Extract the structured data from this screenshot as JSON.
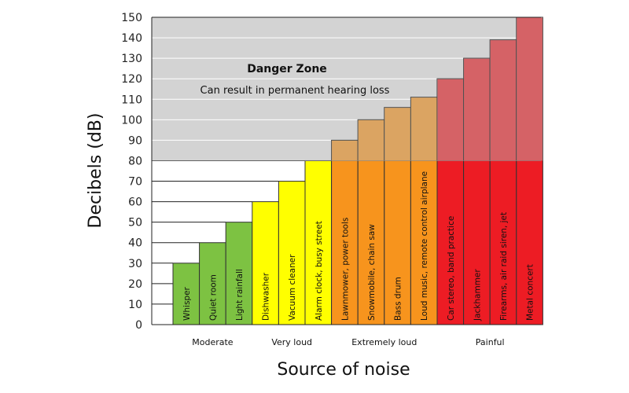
{
  "chart_data": {
    "type": "bar",
    "xlabel": "Source of noise",
    "ylabel": "Decibels (dB)",
    "ylim": [
      0,
      150
    ],
    "yticks": [
      0,
      10,
      20,
      30,
      40,
      50,
      60,
      70,
      80,
      90,
      100,
      110,
      120,
      130,
      140,
      150
    ],
    "grid": true,
    "danger_zone": {
      "threshold": 80,
      "title": "Danger Zone",
      "subtitle": "Can result in permanent hearing loss",
      "color": "#d3d3d3"
    },
    "categories": [
      "Whisper",
      "Quiet room",
      "Light rainfall",
      "Dishwasher",
      "Vacuum cleaner",
      "Alarm clock, busy street",
      "Lawnmower, power tools",
      "Snowmobile, chain saw",
      "Bass drum",
      "Loud music, remote control airplane",
      "Car stereo, band practice",
      "Jackhammer",
      "Firearms, air raid siren, jet",
      "Metal concert"
    ],
    "values": [
      30,
      40,
      50,
      60,
      70,
      80,
      90,
      100,
      106,
      111,
      120,
      130,
      139,
      150
    ],
    "bar_groups": [
      0,
      0,
      0,
      1,
      1,
      1,
      2,
      2,
      2,
      2,
      3,
      3,
      3,
      3
    ],
    "groups": [
      {
        "name": "Moderate",
        "color": "#7dc242"
      },
      {
        "name": "Very loud",
        "color": "#ffff00"
      },
      {
        "name": "Extremely loud",
        "color": "#f7941d"
      },
      {
        "name": "Painful",
        "color": "#ed1c24"
      }
    ]
  }
}
